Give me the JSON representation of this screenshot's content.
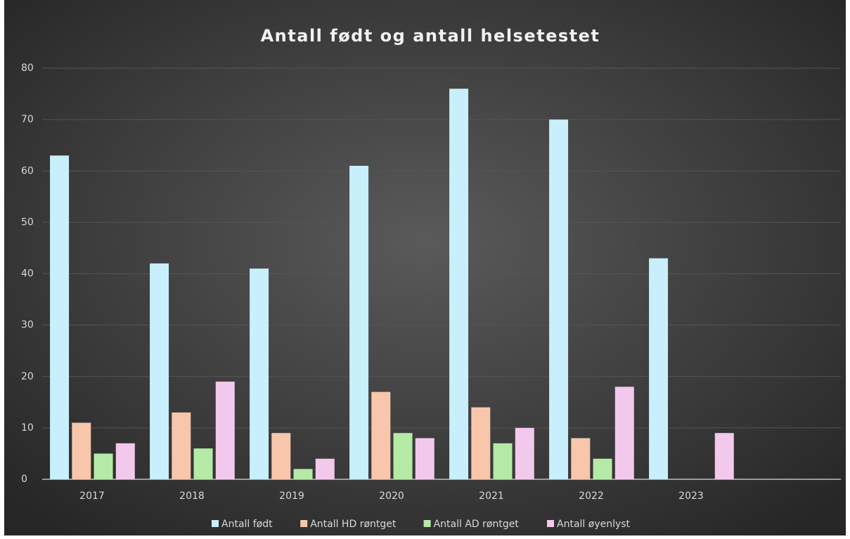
{
  "chart_data": {
    "type": "bar",
    "title": "Antall født og antall helsetestet",
    "categories": [
      "2017",
      "2018",
      "2019",
      "2020",
      "2021",
      "2022",
      "2023",
      null
    ],
    "series": [
      {
        "name": "Antall født",
        "color": "#c9eefc",
        "values": [
          63,
          42,
          41,
          61,
          76,
          70,
          43,
          null
        ]
      },
      {
        "name": "Antall HD røntget",
        "color": "#f7c6ab",
        "values": [
          11,
          13,
          9,
          17,
          14,
          8,
          null,
          null
        ]
      },
      {
        "name": "Antall AD røntget",
        "color": "#b5eaa6",
        "values": [
          5,
          6,
          2,
          9,
          7,
          4,
          null,
          null
        ]
      },
      {
        "name": "Antall øyenlyst",
        "color": "#f2c9ec",
        "values": [
          7,
          19,
          4,
          8,
          10,
          18,
          9,
          null
        ]
      }
    ],
    "ylim": [
      0,
      80
    ],
    "yticks": [
      0,
      10,
      20,
      30,
      40,
      50,
      60,
      70,
      80
    ],
    "grid": true,
    "legend": "bottom"
  }
}
